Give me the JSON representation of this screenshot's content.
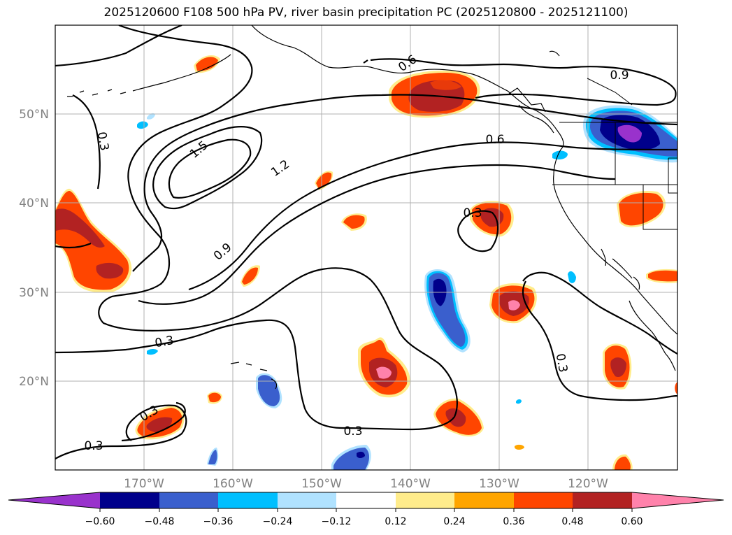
{
  "title": "2025120600 F108 500 hPa PV, river basin precipitation PC (2025120800 - 2025121100)",
  "map": {
    "lat_labels": [
      "50°N",
      "40°N",
      "30°N",
      "20°N"
    ],
    "lon_labels": [
      "170°W",
      "160°W",
      "150°W",
      "140°W",
      "130°W",
      "120°W"
    ],
    "contour_labels": [
      "0.3",
      "0.3",
      "0.3",
      "0.3",
      "0.3",
      "0.3",
      "0.3",
      "0.6",
      "0.6",
      "0.9",
      "0.9",
      "1.2",
      "1.5"
    ]
  },
  "colorbar": {
    "ticks": [
      "−0.60",
      "−0.48",
      "−0.36",
      "−0.24",
      "−0.12",
      "0.12",
      "0.24",
      "0.36",
      "0.48",
      "0.60"
    ],
    "colors": {
      "lt_min": "#9932cc",
      "b1": "#00008b",
      "b2": "#3a5fcd",
      "b3": "#00bfff",
      "b4": "#b0e2ff",
      "b5": "#ffffff",
      "b6": "#ffec8b",
      "b7": "#ffa500",
      "b8": "#ff4500",
      "b9": "#b22222",
      "gt_max": "#ff82ab"
    }
  }
}
